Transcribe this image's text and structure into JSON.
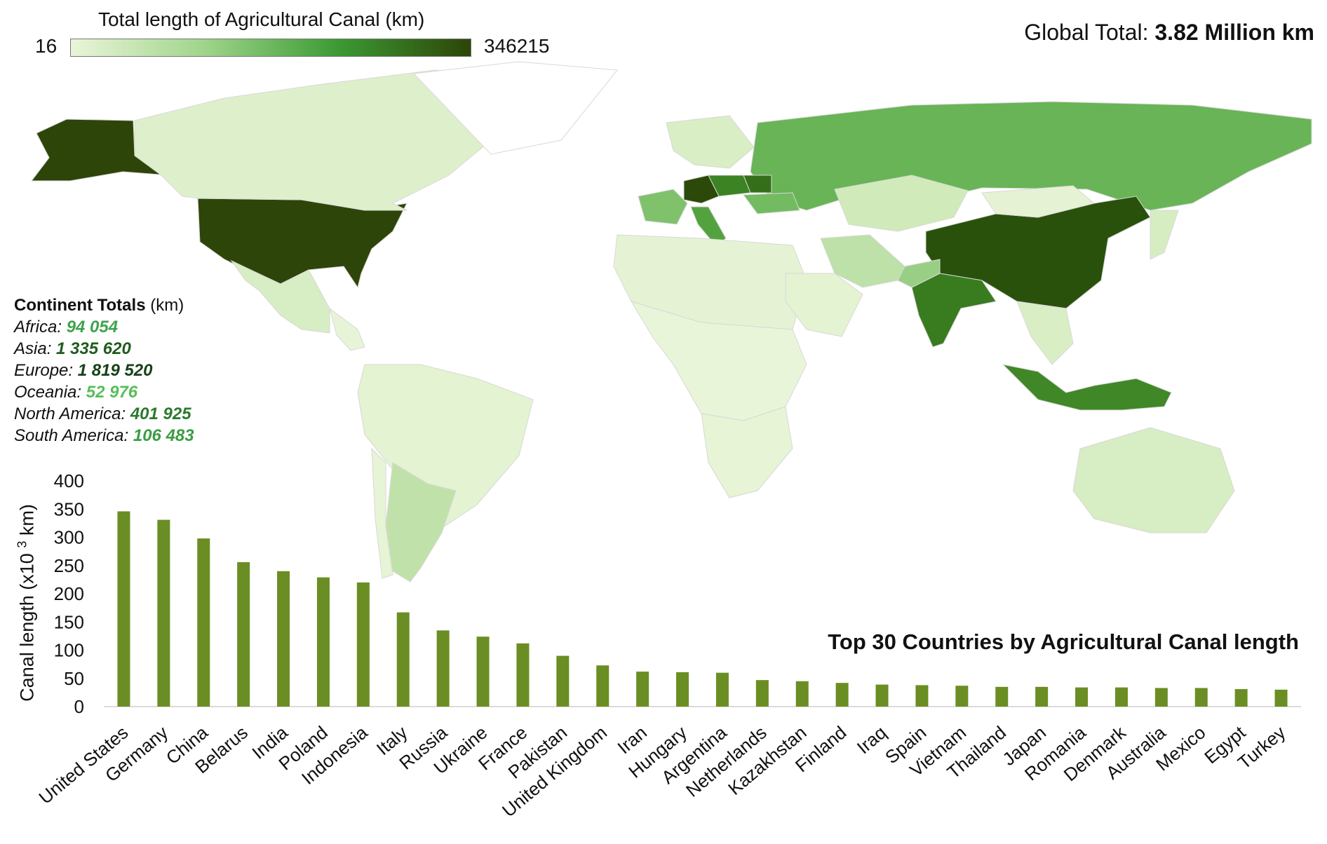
{
  "legend": {
    "title": "Total length of Agricultural Canal (km)",
    "min_label": "16",
    "max_label": "346215",
    "color_low": "#eaf5d9",
    "color_high": "#2d4508"
  },
  "global_total": {
    "label": "Global Total: ",
    "value": "3.82 Million km"
  },
  "continent_totals": {
    "heading": "Continent Totals",
    "unit": " (km)",
    "items": [
      {
        "name": "Africa: ",
        "value": "94 054",
        "color": "#3fa34d"
      },
      {
        "name": "Asia: ",
        "value": "1 335 620",
        "color": "#215c20"
      },
      {
        "name": "Europe: ",
        "value": "1 819 520",
        "color": "#17421a"
      },
      {
        "name": "Oceania: ",
        "value": "52 976",
        "color": "#56bf5a"
      },
      {
        "name": "North America: ",
        "value": "401 925",
        "color": "#2b7a2e"
      },
      {
        "name": "South America: ",
        "value": "106 483",
        "color": "#3b9d44"
      }
    ]
  },
  "map": {
    "countries": [
      {
        "name": "United States",
        "value": 346
      },
      {
        "name": "Alaska",
        "value": 346
      },
      {
        "name": "Canada",
        "value": 20
      },
      {
        "name": "Mexico",
        "value": 33
      },
      {
        "name": "Central America",
        "value": 3
      },
      {
        "name": "Brazil",
        "value": 10
      },
      {
        "name": "Argentina",
        "value": 60
      },
      {
        "name": "Chile",
        "value": 5
      },
      {
        "name": "Greenland",
        "value": 0
      },
      {
        "name": "Russia",
        "value": 135
      },
      {
        "name": "Kazakhstan",
        "value": 45
      },
      {
        "name": "China",
        "value": 298
      },
      {
        "name": "India",
        "value": 240
      },
      {
        "name": "Iran",
        "value": 62
      },
      {
        "name": "Pakistan",
        "value": 90
      },
      {
        "name": "Indonesia",
        "value": 220
      },
      {
        "name": "Australia",
        "value": 33
      },
      {
        "name": "Germany",
        "value": 331
      },
      {
        "name": "Poland",
        "value": 229
      },
      {
        "name": "Belarus",
        "value": 256
      },
      {
        "name": "Italy",
        "value": 167
      },
      {
        "name": "France",
        "value": 112
      },
      {
        "name": "Ukraine",
        "value": 124
      },
      {
        "name": "Scandinavia",
        "value": 30
      },
      {
        "name": "Mongolia",
        "value": 8
      },
      {
        "name": "North Africa",
        "value": 8
      },
      {
        "name": "Central Africa",
        "value": 2
      },
      {
        "name": "Southern Africa",
        "value": 6
      },
      {
        "name": "Arabia",
        "value": 10
      },
      {
        "name": "Japan",
        "value": 35
      },
      {
        "name": "Southeast Asia",
        "value": 30
      }
    ]
  },
  "chart_data": {
    "type": "bar",
    "title": "Top 30 Countries by Agricultural Canal length",
    "ylabel": "Canal length (x10 3 km)",
    "ylabel_parts": {
      "before": "Canal length (x10 ",
      "sup": "3",
      "after": " km)"
    },
    "ylim": [
      0,
      400
    ],
    "yticks": [
      0,
      50,
      100,
      150,
      200,
      250,
      300,
      350,
      400
    ],
    "bar_color": "#6a8e23",
    "categories": [
      "United States",
      "Germany",
      "China",
      "Belarus",
      "India",
      "Poland",
      "Indonesia",
      "Italy",
      "Russia",
      "Ukraine",
      "France",
      "Pakistan",
      "United Kingdom",
      "Iran",
      "Hungary",
      "Argentina",
      "Netherlands",
      "Kazakhstan",
      "Finland",
      "Iraq",
      "Spain",
      "Vietnam",
      "Thailand",
      "Japan",
      "Romania",
      "Denmark",
      "Australia",
      "Mexico",
      "Egypt",
      "Turkey"
    ],
    "values": [
      346,
      331,
      298,
      256,
      240,
      229,
      220,
      167,
      135,
      124,
      112,
      90,
      73,
      62,
      61,
      60,
      47,
      45,
      42,
      39,
      38,
      37,
      35,
      35,
      34,
      34,
      33,
      33,
      31,
      30
    ],
    "grid": false,
    "legend": "none"
  }
}
